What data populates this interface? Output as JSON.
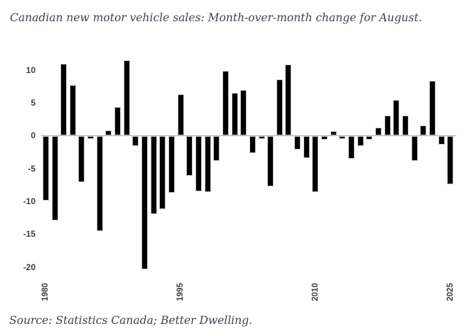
{
  "title": "Canadian new motor vehicle sales: Month-over-month change for August.",
  "source": "Source: Statistics Canada; Better Dwelling.",
  "colors": {
    "background": "#ffffff",
    "bar_fill": "#000000",
    "bar_border": "#c8c8c8",
    "zero_line": "#a8a8a8",
    "axis_label": "#3d3d3d",
    "text": "#3d434e"
  },
  "chart_data": {
    "type": "bar",
    "title": "Canadian new motor vehicle sales: Month-over-month change for August.",
    "xlabel": "",
    "ylabel": "",
    "x": [
      1980,
      1981,
      1982,
      1983,
      1984,
      1985,
      1986,
      1987,
      1988,
      1989,
      1990,
      1991,
      1992,
      1993,
      1994,
      1995,
      1996,
      1997,
      1998,
      1999,
      2000,
      2001,
      2002,
      2003,
      2004,
      2005,
      2006,
      2007,
      2008,
      2009,
      2010,
      2011,
      2012,
      2013,
      2014,
      2015,
      2016,
      2017,
      2018,
      2019,
      2020,
      2021,
      2022,
      2023,
      2024,
      2025
    ],
    "values": [
      -9.8,
      -12.8,
      10.9,
      7.7,
      -7.0,
      -0.4,
      -14.4,
      0.8,
      4.4,
      11.5,
      -1.5,
      -20.2,
      -11.8,
      -11.1,
      -8.6,
      6.3,
      -6.0,
      -8.4,
      -8.5,
      -3.7,
      9.9,
      6.5,
      6.9,
      -2.6,
      -0.4,
      -7.6,
      8.6,
      10.8,
      -2.0,
      -3.3,
      -8.5,
      -0.5,
      0.7,
      -0.4,
      -3.4,
      -1.5,
      -0.5,
      1.2,
      3.1,
      5.4,
      3.0,
      -3.7,
      1.5,
      8.3,
      -1.3,
      -7.3
    ],
    "yticks": [
      10,
      5,
      0,
      -5,
      -10,
      -15,
      -20
    ],
    "xticks": [
      1980,
      1995,
      2010,
      2025
    ],
    "ylim": [
      -21,
      12
    ],
    "grid": false,
    "legend": false,
    "bar_color": "#000000",
    "source": "Source: Statistics Canada; Better Dwelling."
  }
}
